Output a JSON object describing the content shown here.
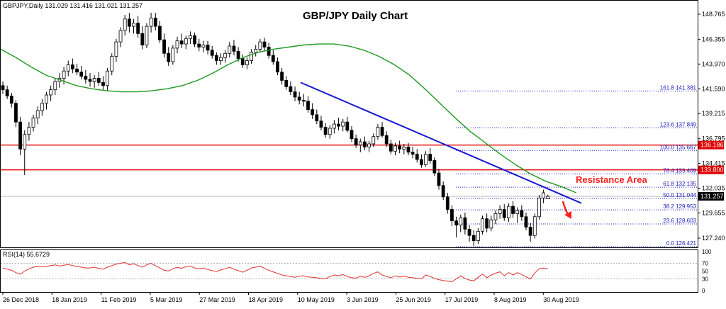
{
  "header": {
    "symbol_info": "GBPJPY,Daily  131.029 131.416 131.021 131.257",
    "title": "GBP/JPY Daily Chart"
  },
  "annotation": {
    "resistance_label": "Resistance Area"
  },
  "rsi": {
    "label": "RSI(14) 55.6729",
    "levels": [
      30,
      70
    ],
    "ticks": [
      "100",
      "70",
      "50",
      "30",
      "0"
    ]
  },
  "chart_data": [
    {
      "type": "candlestick",
      "title": "GBP/JPY Daily Chart",
      "y_ticks": [
        127.24,
        129.655,
        132.035,
        134.415,
        136.795,
        139.215,
        141.59,
        143.97,
        146.355,
        148.765
      ],
      "y_tick_labels": [
        "127.240",
        "129.655",
        "132.035",
        "134.415",
        "136.795",
        "139.215",
        "141.590",
        "143.970",
        "146.355",
        "148.765"
      ],
      "ylim": [
        125.5,
        150.8
      ],
      "x_tick_labels": [
        "26 Dec 2018",
        "18 Jan 2019",
        "11 Feb 2019",
        "5 Mar 2019",
        "27 Mar 2019",
        "18 Apr 2019",
        "10 May 2019",
        "3 Jun 2019",
        "25 Jun 2019",
        "17 Jul 2019",
        "8 Aug 2019",
        "30 Aug 2019"
      ],
      "last_price": 131.257,
      "last_price_label": "131.257",
      "resistance_levels": [
        {
          "value": 136.186,
          "label": "136.186"
        },
        {
          "value": 133.8,
          "label": "133.800"
        }
      ],
      "fibonacci_levels": [
        {
          "value": 141.381,
          "label": "161.8 141.381"
        },
        {
          "value": 137.849,
          "label": "123.6 137.849"
        },
        {
          "value": 135.667,
          "label": "100.0 135.667"
        },
        {
          "value": 133.409,
          "label": "76.4 133.409"
        },
        {
          "value": 132.135,
          "label": "61.8 132.135"
        },
        {
          "value": 131.044,
          "label": "50.0 131.044"
        },
        {
          "value": 129.953,
          "label": "38.2 129.953"
        },
        {
          "value": 128.603,
          "label": "23.6 128.603"
        },
        {
          "value": 126.421,
          "label": "0.0 126.421"
        }
      ],
      "trendline": {
        "from_price": 142.2,
        "to_price": 130.6
      },
      "ma_path": [
        145.4,
        144.6,
        143.7,
        142.9,
        142.4,
        141.9,
        141.6,
        141.4,
        141.3,
        141.3,
        141.4,
        141.6,
        141.9,
        142.4,
        143.1,
        143.9,
        144.6,
        145.1,
        145.4,
        145.6,
        145.8,
        145.9,
        145.9,
        145.7,
        145.3,
        144.7,
        143.9,
        142.9,
        141.6,
        140.2,
        138.8,
        137.5,
        136.4,
        135.3,
        134.3,
        133.4,
        132.7,
        132.2,
        131.6
      ],
      "candles": [
        [
          141.9,
          142.3,
          141.1,
          141.5
        ],
        [
          141.5,
          141.9,
          140.6,
          140.9
        ],
        [
          140.9,
          141.2,
          139.8,
          140.2
        ],
        [
          140.2,
          140.5,
          137.9,
          138.4
        ],
        [
          138.4,
          138.9,
          135.2,
          135.8
        ],
        [
          135.8,
          137.6,
          133.3,
          137.2
        ],
        [
          137.2,
          138.4,
          136.6,
          137.9
        ],
        [
          137.9,
          139.1,
          137.5,
          138.8
        ],
        [
          138.8,
          139.9,
          138.2,
          139.5
        ],
        [
          139.5,
          140.6,
          139.0,
          140.2
        ],
        [
          140.2,
          141.3,
          139.6,
          141.0
        ],
        [
          141.0,
          141.9,
          140.4,
          141.5
        ],
        [
          141.5,
          142.6,
          141.0,
          142.3
        ],
        [
          142.3,
          143.1,
          141.7,
          142.6
        ],
        [
          142.6,
          143.7,
          142.0,
          143.3
        ],
        [
          143.3,
          144.3,
          142.8,
          143.9
        ],
        [
          143.9,
          144.5,
          143.1,
          143.5
        ],
        [
          143.5,
          144.0,
          142.9,
          143.2
        ],
        [
          143.2,
          143.8,
          142.5,
          142.8
        ],
        [
          142.8,
          143.4,
          142.1,
          142.5
        ],
        [
          142.5,
          143.1,
          141.8,
          142.3
        ],
        [
          142.3,
          142.9,
          141.7,
          142.6
        ],
        [
          142.6,
          143.2,
          141.9,
          142.2
        ],
        [
          142.2,
          142.8,
          141.5,
          141.9
        ],
        [
          141.9,
          143.6,
          141.4,
          143.3
        ],
        [
          143.3,
          145.0,
          142.9,
          144.7
        ],
        [
          144.7,
          146.4,
          144.2,
          146.1
        ],
        [
          146.1,
          147.5,
          145.6,
          147.2
        ],
        [
          147.2,
          148.7,
          146.7,
          148.3
        ],
        [
          148.3,
          148.9,
          147.0,
          147.6
        ],
        [
          147.6,
          148.3,
          146.9,
          147.9
        ],
        [
          147.9,
          148.6,
          146.5,
          146.9
        ],
        [
          146.9,
          147.6,
          145.4,
          145.8
        ],
        [
          145.8,
          147.9,
          145.5,
          147.6
        ],
        [
          147.6,
          148.9,
          147.0,
          148.4
        ],
        [
          148.4,
          148.9,
          147.2,
          147.6
        ],
        [
          147.6,
          148.1,
          146.0,
          146.3
        ],
        [
          146.3,
          146.9,
          144.6,
          145.0
        ],
        [
          145.0,
          145.6,
          143.8,
          144.2
        ],
        [
          144.2,
          145.8,
          143.9,
          145.5
        ],
        [
          145.5,
          146.6,
          145.0,
          146.2
        ],
        [
          146.2,
          146.9,
          145.5,
          145.9
        ],
        [
          145.9,
          146.7,
          145.4,
          146.4
        ],
        [
          146.4,
          147.1,
          145.9,
          146.7
        ],
        [
          146.7,
          147.0,
          145.6,
          145.9
        ],
        [
          145.9,
          146.4,
          145.2,
          145.6
        ],
        [
          145.6,
          146.2,
          145.1,
          145.8
        ],
        [
          145.8,
          146.2,
          144.9,
          145.3
        ],
        [
          145.3,
          145.7,
          144.5,
          144.8
        ],
        [
          144.8,
          145.1,
          143.9,
          144.3
        ],
        [
          144.3,
          145.0,
          143.9,
          144.6
        ],
        [
          144.6,
          145.3,
          144.1,
          145.0
        ],
        [
          145.0,
          146.1,
          144.6,
          145.7
        ],
        [
          145.7,
          146.3,
          144.8,
          145.2
        ],
        [
          145.2,
          145.6,
          144.2,
          144.5
        ],
        [
          144.5,
          144.9,
          143.6,
          143.9
        ],
        [
          143.9,
          144.6,
          143.5,
          144.3
        ],
        [
          144.3,
          145.4,
          144.0,
          145.1
        ],
        [
          145.1,
          145.8,
          144.7,
          145.4
        ],
        [
          145.4,
          146.4,
          145.1,
          146.1
        ],
        [
          146.1,
          146.5,
          145.2,
          145.6
        ],
        [
          145.6,
          146.0,
          144.5,
          144.8
        ],
        [
          144.8,
          145.3,
          143.9,
          144.2
        ],
        [
          144.2,
          144.6,
          142.9,
          143.2
        ],
        [
          143.2,
          143.6,
          142.0,
          142.4
        ],
        [
          142.4,
          142.8,
          141.5,
          141.8
        ],
        [
          141.8,
          142.3,
          141.0,
          141.3
        ],
        [
          141.3,
          141.8,
          140.4,
          140.8
        ],
        [
          140.8,
          141.3,
          140.1,
          140.5
        ],
        [
          140.5,
          141.1,
          139.9,
          140.4
        ],
        [
          140.4,
          140.9,
          139.3,
          139.6
        ],
        [
          139.6,
          140.2,
          138.7,
          139.1
        ],
        [
          139.1,
          139.6,
          138.2,
          138.5
        ],
        [
          138.5,
          139.0,
          137.6,
          137.9
        ],
        [
          137.9,
          138.3,
          136.9,
          137.2
        ],
        [
          137.2,
          138.1,
          136.8,
          137.8
        ],
        [
          137.8,
          138.6,
          137.3,
          138.2
        ],
        [
          138.2,
          138.8,
          137.6,
          138.0
        ],
        [
          138.0,
          138.7,
          137.5,
          138.4
        ],
        [
          138.4,
          138.9,
          137.4,
          137.6
        ],
        [
          137.6,
          138.0,
          136.5,
          136.8
        ],
        [
          136.8,
          137.2,
          135.9,
          136.2
        ],
        [
          136.2,
          136.8,
          135.5,
          136.5
        ],
        [
          136.5,
          137.0,
          135.7,
          136.0
        ],
        [
          136.0,
          136.6,
          135.5,
          136.3
        ],
        [
          136.3,
          137.3,
          136.0,
          137.0
        ],
        [
          137.0,
          138.2,
          136.7,
          137.9
        ],
        [
          137.9,
          138.4,
          136.9,
          137.1
        ],
        [
          137.1,
          137.5,
          136.0,
          136.3
        ],
        [
          136.3,
          136.7,
          135.3,
          135.6
        ],
        [
          135.6,
          136.4,
          135.2,
          136.1
        ],
        [
          136.1,
          136.6,
          135.4,
          135.8
        ],
        [
          135.8,
          136.3,
          135.3,
          136.0
        ],
        [
          136.0,
          136.4,
          135.2,
          135.5
        ],
        [
          135.5,
          136.0,
          134.9,
          135.3
        ],
        [
          135.3,
          135.8,
          134.5,
          134.8
        ],
        [
          134.8,
          135.3,
          134.0,
          134.3
        ],
        [
          134.3,
          135.6,
          134.1,
          135.3
        ],
        [
          135.3,
          135.9,
          134.4,
          134.7
        ],
        [
          134.7,
          135.0,
          133.2,
          133.5
        ],
        [
          133.5,
          133.9,
          131.9,
          132.3
        ],
        [
          132.3,
          132.7,
          130.9,
          131.2
        ],
        [
          131.2,
          131.6,
          129.6,
          130.0
        ],
        [
          130.0,
          130.4,
          128.4,
          128.9
        ],
        [
          128.9,
          129.3,
          127.3,
          128.5
        ],
        [
          128.5,
          129.5,
          127.8,
          129.2
        ],
        [
          129.2,
          129.7,
          127.6,
          128.1
        ],
        [
          128.1,
          128.5,
          126.9,
          127.5
        ],
        [
          127.5,
          128.0,
          126.5,
          127.0
        ],
        [
          127.0,
          128.2,
          126.7,
          127.9
        ],
        [
          127.9,
          129.4,
          127.6,
          129.1
        ],
        [
          129.1,
          129.6,
          127.8,
          128.2
        ],
        [
          128.2,
          129.4,
          127.9,
          129.0
        ],
        [
          129.0,
          129.9,
          128.6,
          129.6
        ],
        [
          129.6,
          130.4,
          129.1,
          130.0
        ],
        [
          130.0,
          130.5,
          128.9,
          129.2
        ],
        [
          129.2,
          130.6,
          128.8,
          130.3
        ],
        [
          130.3,
          130.8,
          129.2,
          129.6
        ],
        [
          129.6,
          130.2,
          128.7,
          129.9
        ],
        [
          129.9,
          130.4,
          128.9,
          129.3
        ],
        [
          129.3,
          129.7,
          128.0,
          128.3
        ],
        [
          128.3,
          128.7,
          126.9,
          127.5
        ],
        [
          127.5,
          129.6,
          127.2,
          129.3
        ],
        [
          129.3,
          131.4,
          129.0,
          131.1
        ],
        [
          131.1,
          131.9,
          130.6,
          131.6
        ],
        [
          131.029,
          131.416,
          131.021,
          131.257
        ]
      ],
      "rsi_values": [
        58,
        55,
        52,
        46,
        42,
        50,
        56,
        60,
        62,
        61,
        62,
        64,
        66,
        63,
        65,
        67,
        64,
        62,
        60,
        58,
        58,
        60,
        57,
        55,
        60,
        64,
        68,
        70,
        72,
        66,
        69,
        64,
        60,
        66,
        70,
        64,
        58,
        52,
        50,
        56,
        60,
        57,
        61,
        63,
        58,
        56,
        58,
        54,
        51,
        49,
        53,
        56,
        60,
        55,
        51,
        47,
        52,
        58,
        60,
        63,
        57,
        52,
        48,
        44,
        40,
        38,
        36,
        34,
        37,
        38,
        35,
        34,
        33,
        31,
        30,
        36,
        40,
        38,
        41,
        36,
        33,
        32,
        37,
        34,
        38,
        44,
        48,
        40,
        36,
        33,
        38,
        35,
        37,
        34,
        33,
        31,
        30,
        40,
        36,
        31,
        28,
        26,
        24,
        23,
        30,
        38,
        31,
        27,
        25,
        34,
        42,
        33,
        40,
        45,
        48,
        38,
        46,
        40,
        46,
        41,
        35,
        30,
        45,
        56,
        58,
        55.67
      ]
    }
  ]
}
